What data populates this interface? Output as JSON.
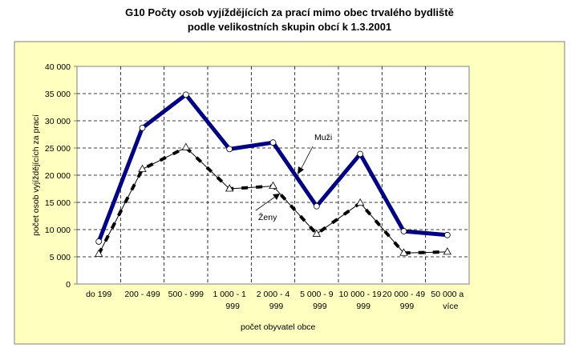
{
  "chart_data": {
    "type": "line",
    "title": "G10 Počty osob vyjíždějících za prací mimo obec trvalého bydliště",
    "subtitle": "podle velikostních skupin obcí k 1.3.2001",
    "xlabel": "počet obyvatel obce",
    "ylabel": "počet osob vyjíždějících za prací",
    "ylim": [
      0,
      40000
    ],
    "yticks": [
      0,
      5000,
      10000,
      15000,
      20000,
      25000,
      30000,
      35000,
      40000
    ],
    "ytick_labels": [
      "0",
      "5 000",
      "10 000",
      "15 000",
      "20 000",
      "25 000",
      "30 000",
      "35 000",
      "40 000"
    ],
    "grid": true,
    "categories": [
      [
        "do 199",
        ""
      ],
      [
        "200 - 499",
        ""
      ],
      [
        "500 - 999",
        ""
      ],
      [
        "1 000 - 1",
        "999"
      ],
      [
        "2 000 - 4",
        "999"
      ],
      [
        "5 000 - 9",
        "999"
      ],
      [
        "10 000 - 19",
        "999"
      ],
      [
        "20 000 - 49",
        "999"
      ],
      [
        "50 000 a",
        "více"
      ]
    ],
    "series": [
      {
        "name": "Muži",
        "color": "#000080",
        "marker": "circle",
        "values": [
          7800,
          28700,
          34800,
          24800,
          26000,
          14300,
          23900,
          9700,
          9000
        ]
      },
      {
        "name": "Ženy",
        "color": "#000000",
        "marker": "triangle",
        "values": [
          5500,
          21100,
          25100,
          17500,
          18000,
          9200,
          14900,
          5700,
          5900
        ]
      }
    ],
    "annotations": [
      "Muži",
      "Ženy"
    ]
  }
}
